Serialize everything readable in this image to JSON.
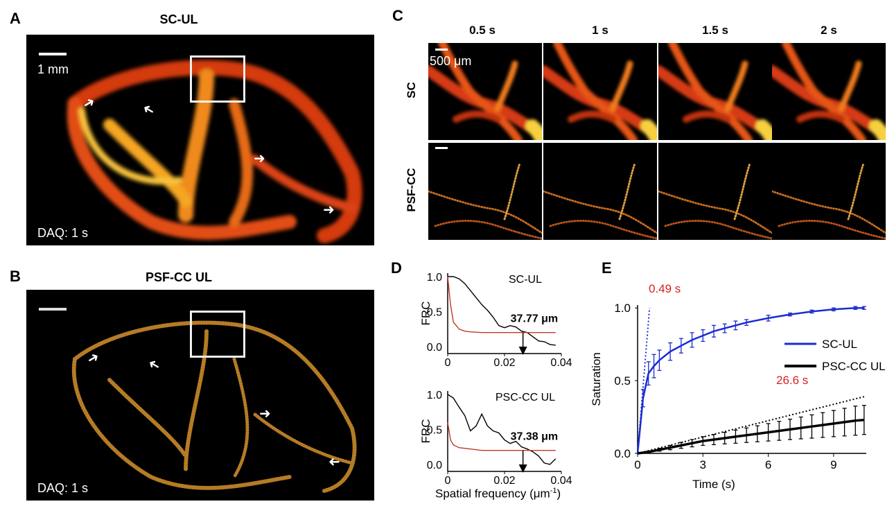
{
  "panels": {
    "A": {
      "label": "A",
      "title": "SC-UL",
      "scalebar": "1 mm",
      "daq": "DAQ: 1 s"
    },
    "B": {
      "label": "B",
      "title": "PSF-CC UL",
      "daq": "DAQ: 1 s"
    },
    "C": {
      "label": "C",
      "times": [
        "0.5 s",
        "1 s",
        "1.5  s",
        "2 s"
      ],
      "rows": [
        "SC",
        "PSF-CC"
      ],
      "scalebar": "500 μm"
    },
    "D": {
      "label": "D",
      "ylabel": "FRC",
      "xlabel_main": "Spatial frequency (μm",
      "xlabel_sup": "-1",
      "xlabel_end": ")"
    },
    "E": {
      "label": "E"
    }
  },
  "chart_data": [
    {
      "type": "line",
      "panel": "D-top",
      "title": "SC-UL",
      "ylabel": "FRC",
      "xlim": [
        0,
        0.04
      ],
      "ylim": [
        -0.1,
        1.05
      ],
      "xticks": [
        "0",
        "0.02",
        "0.04"
      ],
      "yticks": [
        "0.0",
        "0.5",
        "1.0"
      ],
      "annotation": "37.77 μm",
      "crossing_x": 0.0265,
      "series": [
        {
          "color": "#000000",
          "x": [
            0,
            0.002,
            0.004,
            0.006,
            0.008,
            0.01,
            0.012,
            0.014,
            0.016,
            0.018,
            0.02,
            0.022,
            0.024,
            0.026,
            0.028,
            0.03,
            0.032,
            0.034,
            0.036,
            0.038
          ],
          "y": [
            1.0,
            1.0,
            0.97,
            0.9,
            0.8,
            0.7,
            0.6,
            0.52,
            0.42,
            0.3,
            0.27,
            0.3,
            0.28,
            0.22,
            0.2,
            0.14,
            0.08,
            0.07,
            0.03,
            0.02
          ]
        },
        {
          "color": "#c0392b",
          "x": [
            0,
            0.001,
            0.002,
            0.004,
            0.006,
            0.008,
            0.012,
            0.02,
            0.03,
            0.038
          ],
          "y": [
            1.0,
            0.6,
            0.35,
            0.25,
            0.22,
            0.21,
            0.2,
            0.2,
            0.2,
            0.2
          ]
        }
      ]
    },
    {
      "type": "line",
      "panel": "D-bottom",
      "title": "PSC-CC UL",
      "ylabel": "FRC",
      "xlim": [
        0,
        0.04
      ],
      "ylim": [
        -0.1,
        1.05
      ],
      "xticks": [
        "0",
        "0.02",
        "0.04"
      ],
      "yticks": [
        "0.0",
        "0.5",
        "1.0"
      ],
      "annotation": "37.38 μm",
      "crossing_x": 0.0265,
      "series": [
        {
          "color": "#000000",
          "x": [
            0,
            0.002,
            0.004,
            0.006,
            0.008,
            0.01,
            0.012,
            0.014,
            0.016,
            0.018,
            0.02,
            0.022,
            0.024,
            0.026,
            0.028,
            0.03,
            0.032,
            0.034,
            0.036,
            0.038
          ],
          "y": [
            1.0,
            0.95,
            0.82,
            0.7,
            0.48,
            0.55,
            0.72,
            0.55,
            0.48,
            0.45,
            0.35,
            0.3,
            0.33,
            0.25,
            0.22,
            0.18,
            0.12,
            0.02,
            0.0,
            0.08
          ]
        },
        {
          "color": "#c0392b",
          "x": [
            0,
            0.001,
            0.002,
            0.004,
            0.008,
            0.012,
            0.02,
            0.03,
            0.038
          ],
          "y": [
            0.6,
            0.35,
            0.28,
            0.24,
            0.22,
            0.2,
            0.2,
            0.2,
            0.2
          ]
        }
      ]
    },
    {
      "type": "line",
      "panel": "E",
      "xlabel": "Time (s)",
      "ylabel": "Saturation",
      "xlim": [
        0,
        10.5
      ],
      "ylim": [
        0,
        1.02
      ],
      "xticks": [
        "0",
        "3",
        "6",
        "9"
      ],
      "yticks": [
        "0.0",
        "0.5",
        "1.0"
      ],
      "annotations": [
        "0.49 s",
        "26.6 s"
      ],
      "series": [
        {
          "name": "SC-UL",
          "color": "#1a2bd0",
          "x": [
            0,
            0.25,
            0.5,
            0.75,
            1,
            1.5,
            2,
            2.5,
            3,
            3.5,
            4,
            4.5,
            5,
            6,
            7,
            8,
            9,
            10,
            10.4
          ],
          "y": [
            0,
            0.38,
            0.55,
            0.6,
            0.64,
            0.7,
            0.74,
            0.78,
            0.81,
            0.84,
            0.86,
            0.88,
            0.9,
            0.93,
            0.955,
            0.975,
            0.99,
            1.0,
            1.0
          ],
          "err": [
            0,
            0.06,
            0.08,
            0.08,
            0.07,
            0.06,
            0.05,
            0.05,
            0.04,
            0.04,
            0.03,
            0.03,
            0.02,
            0.02,
            0.01,
            0.01,
            0.01,
            0.01,
            0.01
          ]
        },
        {
          "name": "PSC-CC UL",
          "color": "#000000",
          "x": [
            0,
            0.5,
            1,
            1.5,
            2,
            2.5,
            3,
            3.5,
            4,
            4.5,
            5,
            5.5,
            6,
            6.5,
            7,
            7.5,
            8,
            8.5,
            9,
            9.5,
            10,
            10.4
          ],
          "y": [
            0,
            0.01,
            0.025,
            0.04,
            0.055,
            0.07,
            0.085,
            0.095,
            0.105,
            0.115,
            0.125,
            0.135,
            0.145,
            0.155,
            0.165,
            0.175,
            0.185,
            0.195,
            0.205,
            0.215,
            0.225,
            0.23
          ],
          "err": [
            0,
            0.005,
            0.01,
            0.015,
            0.02,
            0.025,
            0.03,
            0.035,
            0.04,
            0.045,
            0.05,
            0.055,
            0.06,
            0.065,
            0.07,
            0.075,
            0.08,
            0.085,
            0.09,
            0.095,
            0.1,
            0.1
          ]
        }
      ]
    }
  ]
}
